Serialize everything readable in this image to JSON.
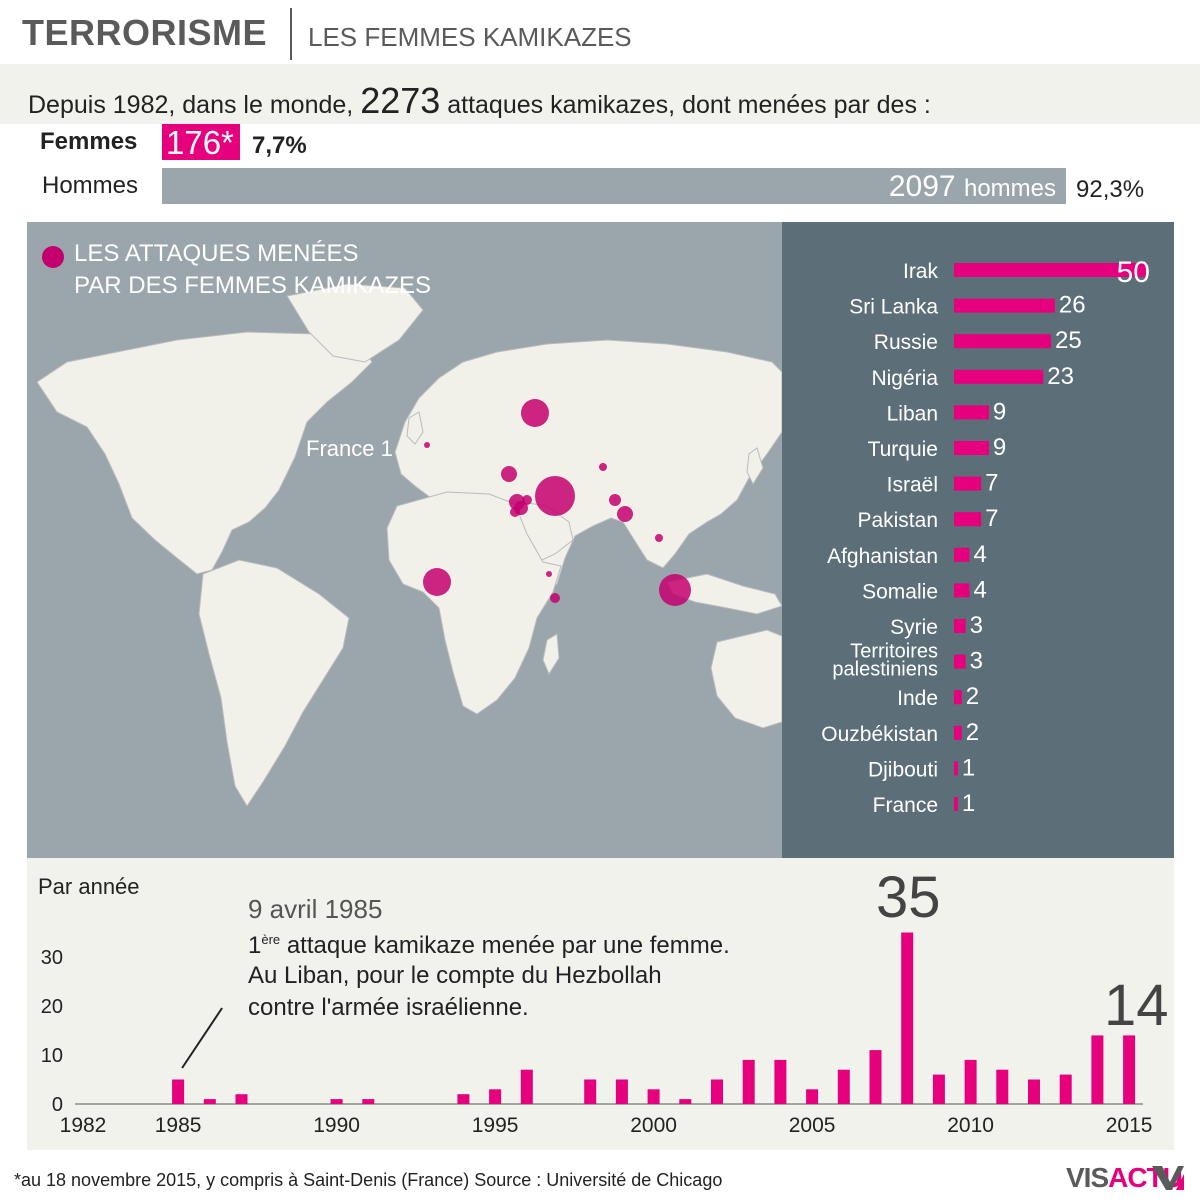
{
  "header": {
    "title": "TERRORISME",
    "subtitle": "LES FEMMES KAMIKAZES"
  },
  "intro": {
    "prefix": "Depuis 1982, dans le monde,",
    "total": "2273",
    "suffix": "attaques kamikazes, dont menées par des :"
  },
  "gender": {
    "women_label": "Femmes",
    "women_count": "176*",
    "women_pct": "7,7%",
    "men_label": "Hommes",
    "men_count": "2097",
    "men_unit": "hommes",
    "men_pct": "92,3%"
  },
  "map": {
    "legend_line1": "LES ATTAQUES MENÉES",
    "legend_line2": "PAR DES FEMMES KAMIKAZES",
    "france_label": "France 1"
  },
  "colors": {
    "accent": "#e6007e",
    "dot": "#c4006e",
    "ocean": "#9aa5ac",
    "land": "#f2f1e9",
    "panel": "#5c6e78",
    "band": "#f2f2ec"
  },
  "chart_data": [
    {
      "type": "bar",
      "title": "LES ATTAQUES MENÉES PAR DES FEMMES KAMIKAZES",
      "orientation": "horizontal",
      "categories": [
        "Irak",
        "Sri Lanka",
        "Russie",
        "Nigéria",
        "Liban",
        "Turquie",
        "Israël",
        "Pakistan",
        "Afghanistan",
        "Somalie",
        "Syrie",
        "Territoires palestiniens",
        "Inde",
        "Ouzbékistan",
        "Djibouti",
        "France"
      ],
      "values": [
        50,
        26,
        25,
        23,
        9,
        9,
        7,
        7,
        4,
        4,
        3,
        3,
        2,
        2,
        1,
        1
      ],
      "xlim": [
        0,
        50
      ]
    },
    {
      "type": "bar",
      "title": "Par année",
      "x": [
        1982,
        1983,
        1984,
        1985,
        1986,
        1987,
        1988,
        1989,
        1990,
        1991,
        1992,
        1993,
        1994,
        1995,
        1996,
        1997,
        1998,
        1999,
        2000,
        2001,
        2002,
        2003,
        2004,
        2005,
        2006,
        2007,
        2008,
        2009,
        2010,
        2011,
        2012,
        2013,
        2014,
        2015
      ],
      "values": [
        0,
        0,
        0,
        5,
        1,
        2,
        0,
        0,
        1,
        1,
        0,
        0,
        2,
        3,
        7,
        0,
        5,
        5,
        3,
        1,
        5,
        9,
        9,
        3,
        7,
        11,
        35,
        6,
        9,
        7,
        5,
        6,
        14,
        14
      ],
      "yticks": [
        0,
        10,
        20,
        30
      ],
      "xticks": [
        1982,
        1985,
        1990,
        1995,
        2000,
        2005,
        2010,
        2015
      ],
      "ylim": [
        0,
        35
      ],
      "highlight_labels": [
        "35",
        "14"
      ],
      "annotation": {
        "date": "9 avril 1985",
        "line1_num": "1",
        "line1_sup": "ère",
        "line1_rest": "attaque kamikaze menée par une femme.",
        "line2": "Au Liban, pour le compte du Hezbollah",
        "line3": "contre l'armée israélienne."
      }
    }
  ],
  "footer": {
    "note": "*au 18 novembre 2015, y compris à Saint-Denis (France)  Source : Université de Chicago",
    "logo_a": "VIS",
    "logo_b": "ACTU"
  }
}
